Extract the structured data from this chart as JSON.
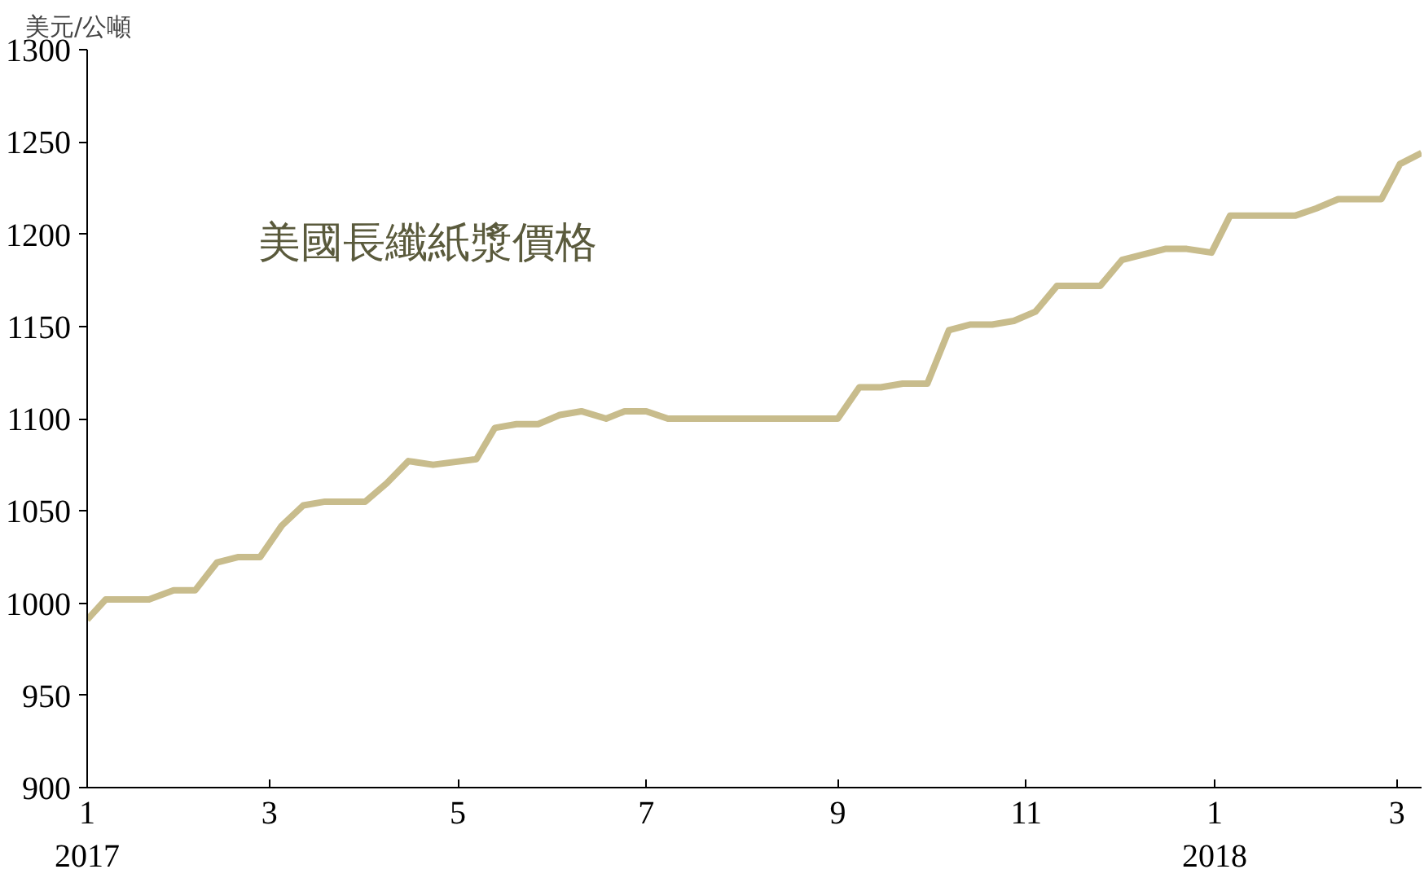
{
  "chart_data": {
    "type": "line",
    "title": "美國長纖紙漿價格",
    "ylabel": "美元/公噸",
    "x": [
      "2017-01-01",
      "2017-01-07",
      "2017-01-21",
      "2017-01-29",
      "2017-02-05",
      "2017-02-12",
      "2017-02-19",
      "2017-02-26",
      "2017-03-05",
      "2017-03-12",
      "2017-03-19",
      "2017-04-01",
      "2017-04-08",
      "2017-04-15",
      "2017-04-23",
      "2017-05-07",
      "2017-05-13",
      "2017-05-20",
      "2017-05-27",
      "2017-06-03",
      "2017-06-10",
      "2017-06-18",
      "2017-06-24",
      "2017-07-01",
      "2017-07-08",
      "2017-09-01",
      "2017-09-08",
      "2017-09-15",
      "2017-09-22",
      "2017-09-30",
      "2017-10-07",
      "2017-10-14",
      "2017-10-21",
      "2017-10-28",
      "2017-11-04",
      "2017-11-11",
      "2017-11-25",
      "2017-12-02",
      "2017-12-09",
      "2017-12-16",
      "2017-12-23",
      "2017-12-31",
      "2018-01-06",
      "2018-01-27",
      "2018-02-03",
      "2018-02-10",
      "2018-02-24",
      "2018-03-02",
      "2018-03-09"
    ],
    "series": [
      {
        "color": "#c8bc8c",
        "values": [
          991,
          1002,
          1002,
          1007,
          1007,
          1022,
          1025,
          1025,
          1042,
          1053,
          1055,
          1055,
          1065,
          1077,
          1075,
          1078,
          1095,
          1097,
          1097,
          1102,
          1104,
          1100,
          1104,
          1104,
          1100,
          1100,
          1117,
          1117,
          1119,
          1119,
          1148,
          1151,
          1151,
          1153,
          1158,
          1172,
          1172,
          1186,
          1189,
          1192,
          1192,
          1190,
          1210,
          1210,
          1214,
          1219,
          1219,
          1238,
          1244
        ]
      }
    ],
    "xlim": [
      "2017-01-01",
      "2018-03-09"
    ],
    "xticks": [
      {
        "value": "2017-01-01",
        "label": "1\n2017"
      },
      {
        "value": "2017-03-01",
        "label": "3"
      },
      {
        "value": "2017-05-01",
        "label": "5"
      },
      {
        "value": "2017-07-01",
        "label": "7"
      },
      {
        "value": "2017-09-01",
        "label": "9"
      },
      {
        "value": "2017-11-01",
        "label": "11"
      },
      {
        "value": "2018-01-01",
        "label": "1\n2018"
      },
      {
        "value": "2018-03-01",
        "label": "3"
      }
    ],
    "ylim": [
      900,
      1300
    ],
    "yticks": [
      900,
      950,
      1000,
      1050,
      1100,
      1150,
      1200,
      1250,
      1300
    ],
    "grid": false,
    "line_style": "solid"
  }
}
